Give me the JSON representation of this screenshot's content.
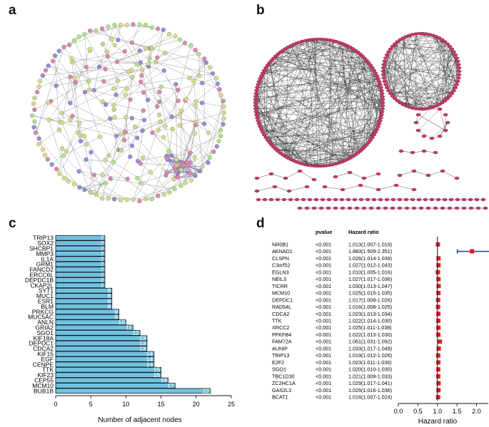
{
  "figure": {
    "panel_a_label": "a",
    "panel_b_label": "b",
    "panel_c_label": "c",
    "panel_d_label": "d"
  },
  "colors": {
    "bar_fill": "#71c2e2",
    "bar_stroke": "#1a1a1a",
    "forest_point": "#e01f26",
    "forest_ci": "#1f3f8a",
    "net_node_blue": "#8f8fd9",
    "net_node_green": "#b5e08a",
    "net_node_pink": "#d98aa8",
    "ring_node": "#c13a63"
  },
  "chart_data": [
    {
      "type": "bar",
      "orientation": "horizontal",
      "title": "",
      "xlabel": "Number of adjacent nodes",
      "ylabel": "",
      "xlim": [
        0,
        25
      ],
      "xticks": [
        0,
        5,
        10,
        15,
        20,
        25
      ],
      "categories": [
        "BUB1B",
        "MCM10",
        "CEP55",
        "KIF23",
        "TTK",
        "CENPE",
        "EGF",
        "KIF15",
        "CDCA2",
        "DEPDC1",
        "KIF18A",
        "SGO1",
        "GRIA2",
        "ANLN",
        "MUC5AC",
        "PRKCG",
        "BLM",
        "ESR1",
        "MUC1",
        "SYT1",
        "CKAP2L",
        "DEPDC1B",
        "ERCC6L",
        "FANCD2",
        "GRM1",
        "IL1A",
        "MMP3",
        "SHCBP1",
        "SOX2",
        "TRIP13"
      ],
      "values": [
        22,
        17,
        16,
        15,
        15,
        14,
        14,
        14,
        13,
        13,
        13,
        12,
        11,
        10,
        9,
        9,
        8,
        8,
        8,
        8,
        7,
        7,
        7,
        7,
        7,
        7,
        7,
        7,
        7,
        7
      ]
    },
    {
      "type": "forest",
      "title": "",
      "xlabel": "Hazard ratio",
      "col_pvalue": "pvalue",
      "col_hr": "Hazard ratio",
      "xlim": [
        0.0,
        2.3
      ],
      "xticks": [
        "0.0",
        "0.5",
        "1.0",
        "1.5",
        "2.0"
      ],
      "xtick_values": [
        0.0,
        0.5,
        1.0,
        1.5,
        2.0
      ],
      "reference_line": 1.0,
      "rows": [
        {
          "gene": "NR0B1",
          "pvalue": "<0.001",
          "hr_text": "1.013(1.007-1.019)",
          "hr": 1.013,
          "lo": 1.007,
          "hi": 1.019
        },
        {
          "gene": "AKNAD1",
          "pvalue": "<0.001",
          "hr_text": "1.883(1.509-2.351)",
          "hr": 1.883,
          "lo": 1.509,
          "hi": 2.351
        },
        {
          "gene": "CLSPN",
          "pvalue": "<0.001",
          "hr_text": "1.026(1.014-1.039)",
          "hr": 1.026,
          "lo": 1.014,
          "hi": 1.039
        },
        {
          "gene": "C3orf52",
          "pvalue": "<0.001",
          "hr_text": "1.027(1.012-1.043)",
          "hr": 1.027,
          "lo": 1.012,
          "hi": 1.043
        },
        {
          "gene": "EGLN3",
          "pvalue": "<0.001",
          "hr_text": "1.010(1.005-1.016)",
          "hr": 1.01,
          "lo": 1.005,
          "hi": 1.016
        },
        {
          "gene": "NEIL3",
          "pvalue": "<0.001",
          "hr_text": "1.027(1.017-1.036)",
          "hr": 1.027,
          "lo": 1.017,
          "hi": 1.036
        },
        {
          "gene": "TICRR",
          "pvalue": "<0.001",
          "hr_text": "1.030(1.013-1.047)",
          "hr": 1.03,
          "lo": 1.013,
          "hi": 1.047
        },
        {
          "gene": "MCM10",
          "pvalue": "<0.001",
          "hr_text": "1.025(1.015-1.035)",
          "hr": 1.025,
          "lo": 1.015,
          "hi": 1.035
        },
        {
          "gene": "DEPDC1",
          "pvalue": "<0.001",
          "hr_text": "1.017(1.009-1.026)",
          "hr": 1.017,
          "lo": 1.009,
          "hi": 1.026
        },
        {
          "gene": "RAD54L",
          "pvalue": "<0.001",
          "hr_text": "1.016(1.008-1.025)",
          "hr": 1.016,
          "lo": 1.008,
          "hi": 1.025
        },
        {
          "gene": "CDCA2",
          "pvalue": "<0.001",
          "hr_text": "1.023(1.013-1.034)",
          "hr": 1.023,
          "lo": 1.013,
          "hi": 1.034
        },
        {
          "gene": "TTK",
          "pvalue": "<0.001",
          "hr_text": "1.022(1.014-1.030)",
          "hr": 1.022,
          "lo": 1.014,
          "hi": 1.03
        },
        {
          "gene": "XRCC2",
          "pvalue": "<0.001",
          "hr_text": "1.025(1.011-1.038)",
          "hr": 1.025,
          "lo": 1.011,
          "hi": 1.038
        },
        {
          "gene": "PFKFB4",
          "pvalue": "<0.001",
          "hr_text": "1.022(1.013-1.030)",
          "hr": 1.022,
          "lo": 1.013,
          "hi": 1.03
        },
        {
          "gene": "FAM72A",
          "pvalue": "<0.001",
          "hr_text": "1.061(1.031-1.092)",
          "hr": 1.061,
          "lo": 1.031,
          "hi": 1.092
        },
        {
          "gene": "AUNIP",
          "pvalue": "<0.001",
          "hr_text": "1.033(1.017-1.049)",
          "hr": 1.033,
          "lo": 1.017,
          "hi": 1.049
        },
        {
          "gene": "TRIP13",
          "pvalue": "<0.001",
          "hr_text": "1.019(1.012-1.026)",
          "hr": 1.019,
          "lo": 1.012,
          "hi": 1.026
        },
        {
          "gene": "E2F2",
          "pvalue": "<0.001",
          "hr_text": "1.023(1.011-1.036)",
          "hr": 1.023,
          "lo": 1.011,
          "hi": 1.036
        },
        {
          "gene": "SGO1",
          "pvalue": "<0.001",
          "hr_text": "1.020(1.010-1.030)",
          "hr": 1.02,
          "lo": 1.01,
          "hi": 1.03
        },
        {
          "gene": "TBC1D30",
          "pvalue": "<0.001",
          "hr_text": "1.021(1.009-1.033)",
          "hr": 1.021,
          "lo": 1.009,
          "hi": 1.033
        },
        {
          "gene": "ZC2HC1A",
          "pvalue": "<0.001",
          "hr_text": "1.029(1.017-1.041)",
          "hr": 1.029,
          "lo": 1.017,
          "hi": 1.041
        },
        {
          "gene": "GAS2L3",
          "pvalue": "<0.001",
          "hr_text": "1.026(1.016-1.036)",
          "hr": 1.026,
          "lo": 1.016,
          "hi": 1.036
        },
        {
          "gene": "BCAT1",
          "pvalue": "<0.001",
          "hr_text": "1.016(1.007-1.024)",
          "hr": 1.016,
          "lo": 1.007,
          "hi": 1.024
        }
      ]
    }
  ]
}
